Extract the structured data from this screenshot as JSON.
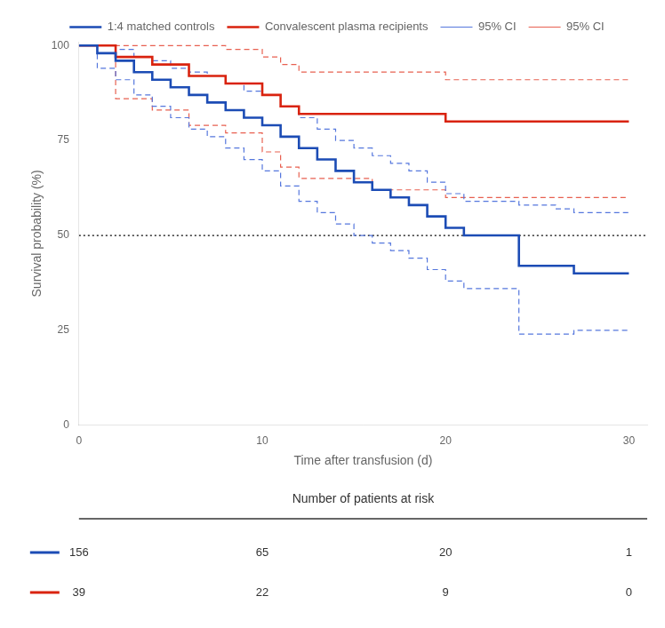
{
  "chart_data": {
    "type": "step",
    "xlabel": "Time after transfusion (d)",
    "ylabel": "Survival probability (%)",
    "xlim": [
      0,
      31
    ],
    "ylim": [
      0,
      101
    ],
    "xticks": [
      0,
      10,
      20,
      30
    ],
    "yticks": [
      0,
      25,
      50,
      75,
      100
    ],
    "grid": false,
    "legend": "top",
    "series": [
      {
        "name": "1:4 matched controls",
        "color": "#1c4cb5",
        "line_style": "solid",
        "x": [
          0,
          1,
          1,
          2,
          2,
          3,
          3,
          4,
          4,
          5,
          5,
          6,
          6,
          7,
          7,
          8,
          8,
          9,
          9,
          10,
          10,
          11,
          11,
          12,
          12,
          13,
          13,
          14,
          14,
          15,
          15,
          16,
          16,
          17,
          17,
          18,
          18,
          19,
          19,
          20,
          20,
          21,
          21,
          22,
          22,
          23,
          23,
          24,
          24,
          25,
          25,
          26,
          26,
          27,
          27,
          28,
          28,
          30
        ],
        "values": [
          100,
          100,
          98,
          98,
          96,
          96,
          93,
          93,
          91,
          91,
          89,
          89,
          87,
          87,
          85,
          85,
          83,
          83,
          81,
          81,
          79,
          79,
          76,
          76,
          73,
          73,
          70,
          70,
          67,
          67,
          64,
          64,
          62,
          62,
          60,
          60,
          58,
          58,
          55,
          55,
          52,
          52,
          50,
          50,
          50,
          50,
          50,
          50,
          42,
          42,
          42,
          42,
          42,
          42,
          40,
          40,
          40,
          40
        ]
      },
      {
        "name": "95% CI",
        "color": "#5577dd",
        "line_style": "dashed",
        "x": [
          0,
          1,
          1,
          2,
          2,
          3,
          3,
          4,
          4,
          5,
          5,
          6,
          6,
          7,
          7,
          8,
          8,
          9,
          9,
          10,
          10,
          11,
          11,
          12,
          12,
          13,
          13,
          14,
          14,
          15,
          15,
          16,
          16,
          17,
          17,
          18,
          18,
          19,
          19,
          20,
          20,
          21,
          21,
          22,
          22,
          23,
          23,
          24,
          24,
          25,
          25,
          26,
          26,
          27,
          27,
          28,
          28,
          30
        ],
        "values": [
          100,
          100,
          100,
          100,
          99,
          99,
          97,
          97,
          96,
          96,
          94,
          94,
          93,
          93,
          92,
          92,
          90,
          90,
          88,
          88,
          87,
          87,
          84,
          84,
          81,
          81,
          78,
          78,
          75,
          75,
          73,
          73,
          71,
          71,
          69,
          69,
          67,
          67,
          64,
          64,
          61,
          61,
          59,
          59,
          59,
          59,
          59,
          59,
          58,
          58,
          58,
          58,
          57,
          57,
          56,
          56,
          56,
          56
        ]
      },
      {
        "name": "95% CI",
        "color": "#5577dd",
        "line_style": "dashed",
        "x": [
          0,
          1,
          1,
          2,
          2,
          3,
          3,
          4,
          4,
          5,
          5,
          6,
          6,
          7,
          7,
          8,
          8,
          9,
          9,
          10,
          10,
          11,
          11,
          12,
          12,
          13,
          13,
          14,
          14,
          15,
          15,
          16,
          16,
          17,
          17,
          18,
          18,
          19,
          19,
          20,
          20,
          21,
          21,
          22,
          22,
          23,
          23,
          24,
          24,
          25,
          25,
          26,
          26,
          27,
          27,
          28,
          28,
          30
        ],
        "values": [
          100,
          100,
          94,
          94,
          91,
          91,
          87,
          87,
          84,
          84,
          81,
          81,
          78,
          78,
          76,
          76,
          73,
          73,
          70,
          70,
          67,
          67,
          63,
          63,
          59,
          59,
          56,
          56,
          53,
          53,
          50,
          50,
          48,
          48,
          46,
          46,
          44,
          44,
          41,
          41,
          38,
          38,
          36,
          36,
          36,
          36,
          36,
          36,
          24,
          24,
          24,
          24,
          24,
          24,
          25,
          25,
          25,
          25
        ]
      },
      {
        "name": "Convalescent plasma recipients",
        "color": "#d9230f",
        "line_style": "solid",
        "x": [
          0,
          2,
          2,
          4,
          4,
          6,
          6,
          8,
          8,
          10,
          10,
          11,
          11,
          12,
          12,
          13,
          13,
          14,
          14,
          15,
          15,
          16,
          16,
          17,
          17,
          18,
          18,
          19,
          19,
          20,
          20,
          30
        ],
        "values": [
          100,
          100,
          97,
          97,
          95,
          95,
          92,
          92,
          90,
          90,
          87,
          87,
          84,
          84,
          82,
          82,
          82,
          82,
          82,
          82,
          82,
          82,
          82,
          82,
          82,
          82,
          82,
          82,
          82,
          82,
          80,
          80
        ]
      },
      {
        "name": "95% CI",
        "color": "#e86050",
        "line_style": "dashed",
        "x": [
          0,
          2,
          2,
          4,
          4,
          6,
          6,
          8,
          8,
          10,
          10,
          11,
          11,
          12,
          12,
          13,
          13,
          14,
          14,
          15,
          15,
          16,
          16,
          17,
          17,
          18,
          18,
          19,
          19,
          20,
          20,
          30
        ],
        "values": [
          100,
          100,
          100,
          100,
          100,
          100,
          100,
          100,
          99,
          99,
          97,
          97,
          95,
          95,
          93,
          93,
          93,
          93,
          93,
          93,
          93,
          93,
          93,
          93,
          93,
          93,
          93,
          93,
          93,
          93,
          91,
          91
        ]
      },
      {
        "name": "95% CI",
        "color": "#e86050",
        "line_style": "dashed",
        "x": [
          0,
          2,
          2,
          4,
          4,
          6,
          6,
          8,
          8,
          10,
          10,
          11,
          11,
          12,
          12,
          13,
          13,
          14,
          14,
          15,
          15,
          16,
          16,
          17,
          17,
          18,
          18,
          19,
          19,
          20,
          20,
          30
        ],
        "values": [
          100,
          100,
          86,
          86,
          83,
          83,
          79,
          79,
          77,
          77,
          72,
          72,
          68,
          68,
          65,
          65,
          65,
          65,
          65,
          65,
          65,
          65,
          65,
          62,
          62,
          62,
          62,
          62,
          62,
          62,
          60,
          60
        ]
      }
    ],
    "reference_lines": [
      {
        "y": 50,
        "color": "black",
        "line_style": "dotted"
      }
    ],
    "risk_table": {
      "title": "Number of patients at risk",
      "x": [
        0,
        10,
        20,
        30
      ],
      "rows": [
        {
          "color": "#1c4cb5",
          "values": [
            156,
            65,
            20,
            1
          ]
        },
        {
          "color": "#d9230f",
          "values": [
            39,
            22,
            9,
            0
          ]
        }
      ]
    }
  }
}
